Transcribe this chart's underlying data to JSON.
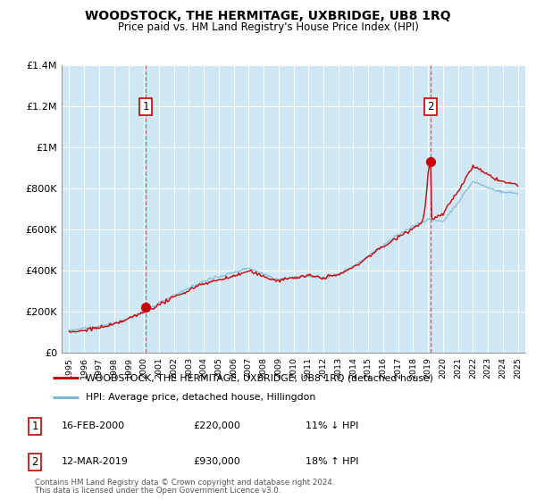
{
  "title": "WOODSTOCK, THE HERMITAGE, UXBRIDGE, UB8 1RQ",
  "subtitle": "Price paid vs. HM Land Registry's House Price Index (HPI)",
  "legend_line1": "WOODSTOCK, THE HERMITAGE, UXBRIDGE, UB8 1RQ (detached house)",
  "legend_line2": "HPI: Average price, detached house, Hillingdon",
  "footnote1": "Contains HM Land Registry data © Crown copyright and database right 2024.",
  "footnote2": "This data is licensed under the Open Government Licence v3.0.",
  "annotation1_date": "16-FEB-2000",
  "annotation1_price": "£220,000",
  "annotation1_hpi": "11% ↓ HPI",
  "annotation2_date": "12-MAR-2019",
  "annotation2_price": "£930,000",
  "annotation2_hpi": "18% ↑ HPI",
  "hpi_color": "#7ab8d9",
  "hpi_fill_color": "#d0e8f5",
  "price_color": "#cc0000",
  "background_color": "#ffffff",
  "grid_color": "#cccccc",
  "dashed_line_color": "#cc0000",
  "ylim_min": 0,
  "ylim_max": 1400000,
  "yticks": [
    0,
    200000,
    400000,
    600000,
    800000,
    1000000,
    1200000,
    1400000
  ],
  "ytick_labels": [
    "£0",
    "£200K",
    "£400K",
    "£600K",
    "£800K",
    "£1M",
    "£1.2M",
    "£1.4M"
  ],
  "sale1_x": 2000.12,
  "sale1_y": 220000,
  "sale2_x": 2019.19,
  "sale2_y": 930000,
  "vline1_x": 2000.12,
  "vline2_x": 2019.19,
  "xlim_min": 1994.5,
  "xlim_max": 2025.5
}
